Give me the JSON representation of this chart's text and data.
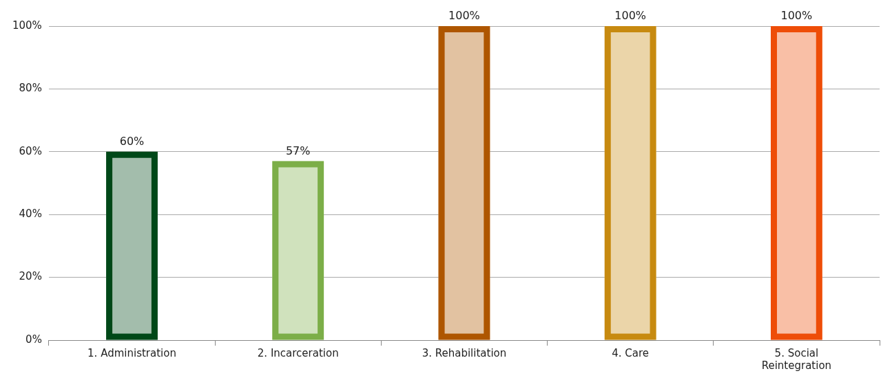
{
  "chart_data": {
    "type": "bar",
    "categories": [
      "1. Administration",
      "2. Incarceration",
      "3. Rehabilitation",
      "4. Care",
      "5. Social Reintegration"
    ],
    "values": [
      60,
      57,
      100,
      100,
      100
    ],
    "value_labels": [
      "60%",
      "57%",
      "100%",
      "100%",
      "100%"
    ],
    "colors": [
      "#a3bdac",
      "#d0e2bd",
      "#e2c2a1",
      "#ebd5a9",
      "#f9bfa6"
    ],
    "ylim": [
      0,
      100
    ],
    "yticks": [
      {
        "value": 0,
        "label": "0%"
      },
      {
        "value": 20,
        "label": "20%"
      },
      {
        "value": 40,
        "label": "40%"
      },
      {
        "value": 60,
        "label": "60%"
      },
      {
        "value": 80,
        "label": "80%"
      },
      {
        "value": 100,
        "label": "100%"
      }
    ],
    "grid": "y"
  }
}
